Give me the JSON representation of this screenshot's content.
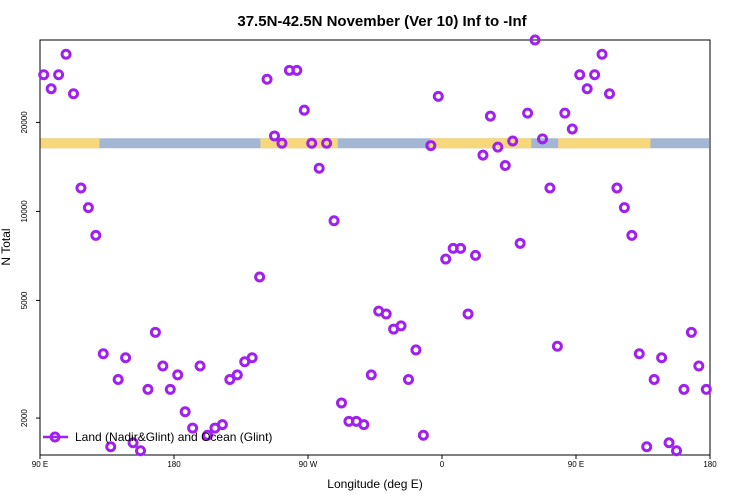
{
  "chart_data": {
    "type": "scatter",
    "title": "37.5N-42.5N November (Ver 10)   Inf to -Inf",
    "xlabel": "Longitude (deg E)",
    "ylabel": "N Total",
    "y_scale": "log",
    "ylim": [
      1500,
      38000
    ],
    "x_ticks": [
      {
        "value": 0,
        "label": "90 E"
      },
      {
        "value": 90,
        "label": "180"
      },
      {
        "value": 180,
        "label": "90 W"
      },
      {
        "value": 270,
        "label": "0"
      },
      {
        "value": 360,
        "label": "90 E"
      },
      {
        "value": 450,
        "label": "180"
      }
    ],
    "y_ticks": [
      {
        "value": 2000,
        "label": "2000"
      },
      {
        "value": 5000,
        "label": "5000"
      },
      {
        "value": 10000,
        "label": "10000"
      },
      {
        "value": 20000,
        "label": "20000"
      }
    ],
    "legend": {
      "label": "Land (Nadir&Glint) and Ocean (Glint)",
      "position": "bottom-left"
    },
    "colors": {
      "marker": "#a020f0",
      "land": "#f6d77a",
      "ocean": "#a3b6d4"
    },
    "surface_band": {
      "y": 17000,
      "land_ranges_deg": [
        [
          0,
          40
        ],
        [
          148,
          200
        ],
        [
          262,
          330
        ],
        [
          348,
          410
        ]
      ]
    },
    "series": [
      {
        "name": "Land (Nadir&Glint) and Ocean (Glint)",
        "x": [
          2.5,
          7.5,
          12.5,
          17.5,
          22.5,
          27.5,
          32.5,
          37.5,
          42.5,
          47.5,
          52.5,
          57.5,
          62.5,
          67.5,
          72.5,
          77.5,
          82.5,
          87.5,
          92.5,
          97.5,
          102.5,
          107.5,
          112.5,
          117.5,
          122.5,
          127.5,
          132.5,
          137.5,
          142.5,
          147.5,
          152.5,
          157.5,
          162.5,
          167.5,
          172.5,
          177.5,
          182.5,
          187.5,
          192.5,
          197.5,
          202.5,
          207.5,
          212.5,
          217.5,
          222.5,
          227.5,
          232.5,
          237.5,
          242.5,
          247.5,
          252.5,
          257.5,
          262.5,
          267.5,
          272.5,
          277.5,
          282.5,
          287.5,
          292.5,
          297.5,
          302.5,
          307.5,
          312.5,
          317.5,
          322.5,
          327.5,
          332.5,
          337.5,
          342.5,
          347.5,
          352.5,
          357.5,
          362.5,
          367.5,
          372.5,
          377.5,
          382.5,
          387.5,
          392.5,
          397.5,
          402.5,
          407.5,
          412.5,
          417.5,
          422.5,
          427.5,
          432.5,
          437.5,
          442.5,
          447.5
        ],
        "y": [
          29000,
          26000,
          29000,
          34000,
          25000,
          12000,
          10300,
          8300,
          3300,
          1600,
          2700,
          3200,
          1650,
          1550,
          2500,
          3900,
          3000,
          2500,
          2800,
          2100,
          1850,
          3000,
          1750,
          1850,
          1900,
          2700,
          2800,
          3100,
          3200,
          6000,
          28000,
          18000,
          17000,
          30000,
          30000,
          22000,
          17000,
          14000,
          17000,
          9300,
          2250,
          1950,
          1950,
          1900,
          2800,
          4600,
          4500,
          4000,
          4100,
          2700,
          3400,
          1750,
          16700,
          24500,
          6900,
          7500,
          7500,
          4500,
          7100,
          15500,
          21000,
          16500,
          14300,
          17300,
          7800,
          21500,
          38000,
          17600,
          12000,
          3500,
          21500,
          19000,
          29000,
          26000,
          29000,
          34000,
          25000,
          12000,
          10300,
          8300,
          3300,
          1600,
          2700,
          3200,
          1650,
          1550,
          2500,
          3900,
          3000,
          2500
        ]
      }
    ]
  }
}
